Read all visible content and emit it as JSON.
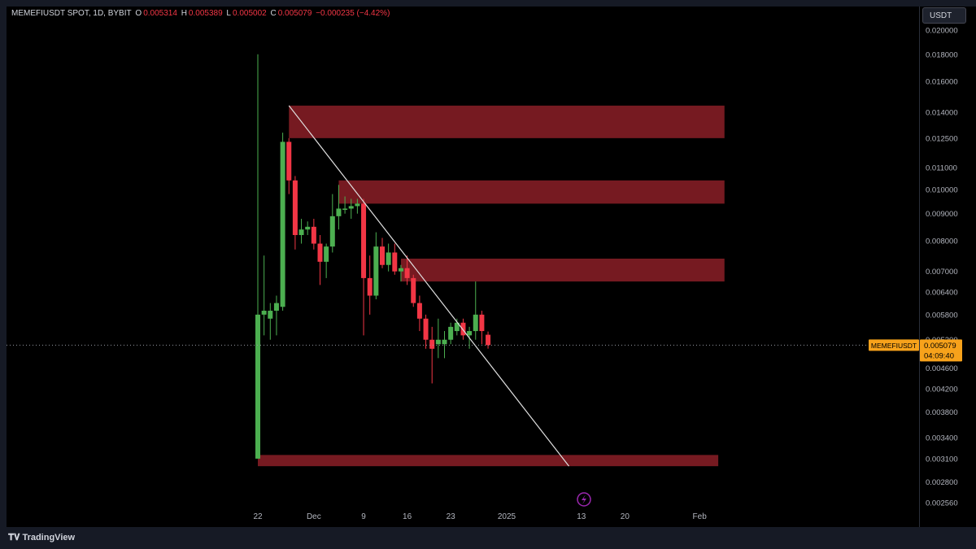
{
  "header": {
    "symbol": "MEMEFIUSDT SPOT, 1D, BYBIT",
    "o_label": "O",
    "o_value": "0.005314",
    "h_label": "H",
    "h_value": "0.005389",
    "l_label": "L",
    "l_value": "0.005002",
    "c_label": "C",
    "c_value": "0.005079",
    "change": "−0.000235 (−4.42%)"
  },
  "currency_button": "USDT",
  "footer": {
    "brand": "TradingView"
  },
  "last_price": {
    "symbol": "MEMEFIUSDT",
    "price": "0.005079",
    "countdown": "04:09:40"
  },
  "colors": {
    "up": "#4caf50",
    "down": "#f23645",
    "zone": "#801c24",
    "trendline": "#e0e0e0",
    "price_tag": "#f7a21b",
    "background": "#000000"
  },
  "chart_data": {
    "type": "candlestick",
    "y_scale": "log",
    "ylim": [
      0.00245,
      0.0205
    ],
    "y_ticks": [
      "0.020000",
      "0.018000",
      "0.016000",
      "0.014000",
      "0.012500",
      "0.011000",
      "0.010000",
      "0.009000",
      "0.008000",
      "0.007000",
      "0.006400",
      "0.005800",
      "0.005200",
      "0.004600",
      "0.004200",
      "0.003800",
      "0.003400",
      "0.003100",
      "0.002800",
      "0.002560"
    ],
    "x_ticks": [
      "22",
      "Dec",
      "9",
      "16",
      "23",
      "2025",
      "13",
      "20",
      "Feb"
    ],
    "candles": [
      {
        "date": "2024-11-22",
        "o": 0.0031,
        "h": 0.018,
        "l": 0.0031,
        "c": 0.0058
      },
      {
        "date": "2024-11-23",
        "o": 0.0058,
        "h": 0.0075,
        "l": 0.0053,
        "c": 0.0059
      },
      {
        "date": "2024-11-24",
        "o": 0.0057,
        "h": 0.0061,
        "l": 0.0052,
        "c": 0.0059
      },
      {
        "date": "2024-11-25",
        "o": 0.0059,
        "h": 0.0063,
        "l": 0.0053,
        "c": 0.0061
      },
      {
        "date": "2024-11-26",
        "o": 0.006,
        "h": 0.0128,
        "l": 0.0059,
        "c": 0.0123
      },
      {
        "date": "2024-11-27",
        "o": 0.0123,
        "h": 0.0125,
        "l": 0.0098,
        "c": 0.0104
      },
      {
        "date": "2024-11-28",
        "o": 0.0104,
        "h": 0.0106,
        "l": 0.0077,
        "c": 0.0082
      },
      {
        "date": "2024-11-29",
        "o": 0.0082,
        "h": 0.0088,
        "l": 0.0079,
        "c": 0.0084
      },
      {
        "date": "2024-11-30",
        "o": 0.0084,
        "h": 0.0087,
        "l": 0.0082,
        "c": 0.0085
      },
      {
        "date": "2024-12-01",
        "o": 0.0085,
        "h": 0.0088,
        "l": 0.0077,
        "c": 0.0079
      },
      {
        "date": "2024-12-02",
        "o": 0.0079,
        "h": 0.0082,
        "l": 0.0066,
        "c": 0.0073
      },
      {
        "date": "2024-12-03",
        "o": 0.0073,
        "h": 0.0079,
        "l": 0.0068,
        "c": 0.0078
      },
      {
        "date": "2024-12-04",
        "o": 0.0078,
        "h": 0.0098,
        "l": 0.0076,
        "c": 0.0089
      },
      {
        "date": "2024-12-05",
        "o": 0.0089,
        "h": 0.0102,
        "l": 0.0084,
        "c": 0.0092
      },
      {
        "date": "2024-12-06",
        "o": 0.0092,
        "h": 0.0097,
        "l": 0.009,
        "c": 0.0092
      },
      {
        "date": "2024-12-07",
        "o": 0.0092,
        "h": 0.0096,
        "l": 0.0088,
        "c": 0.0093
      },
      {
        "date": "2024-12-08",
        "o": 0.0093,
        "h": 0.0096,
        "l": 0.009,
        "c": 0.0094
      },
      {
        "date": "2024-12-09",
        "o": 0.0094,
        "h": 0.0096,
        "l": 0.0053,
        "c": 0.0068
      },
      {
        "date": "2024-12-10",
        "o": 0.0068,
        "h": 0.0075,
        "l": 0.0058,
        "c": 0.0063
      },
      {
        "date": "2024-12-11",
        "o": 0.0063,
        "h": 0.0083,
        "l": 0.0062,
        "c": 0.0078
      },
      {
        "date": "2024-12-12",
        "o": 0.0078,
        "h": 0.0081,
        "l": 0.0071,
        "c": 0.0072
      },
      {
        "date": "2024-12-13",
        "o": 0.0072,
        "h": 0.0079,
        "l": 0.007,
        "c": 0.0076
      },
      {
        "date": "2024-12-14",
        "o": 0.0076,
        "h": 0.0079,
        "l": 0.0069,
        "c": 0.007
      },
      {
        "date": "2024-12-15",
        "o": 0.007,
        "h": 0.0072,
        "l": 0.0067,
        "c": 0.0071
      },
      {
        "date": "2024-12-16",
        "o": 0.0071,
        "h": 0.0075,
        "l": 0.0066,
        "c": 0.0068
      },
      {
        "date": "2024-12-17",
        "o": 0.0068,
        "h": 0.0069,
        "l": 0.006,
        "c": 0.0061
      },
      {
        "date": "2024-12-18",
        "o": 0.0061,
        "h": 0.0063,
        "l": 0.0054,
        "c": 0.0057
      },
      {
        "date": "2024-12-19",
        "o": 0.0057,
        "h": 0.0058,
        "l": 0.005,
        "c": 0.0052
      },
      {
        "date": "2024-12-20",
        "o": 0.0052,
        "h": 0.0055,
        "l": 0.0043,
        "c": 0.005
      },
      {
        "date": "2024-12-21",
        "o": 0.0051,
        "h": 0.0057,
        "l": 0.0048,
        "c": 0.0052
      },
      {
        "date": "2024-12-22",
        "o": 0.0051,
        "h": 0.0054,
        "l": 0.0048,
        "c": 0.0052
      },
      {
        "date": "2024-12-23",
        "o": 0.0052,
        "h": 0.0056,
        "l": 0.0051,
        "c": 0.0055
      },
      {
        "date": "2024-12-24",
        "o": 0.0054,
        "h": 0.0057,
        "l": 0.0053,
        "c": 0.0056
      },
      {
        "date": "2024-12-25",
        "o": 0.0056,
        "h": 0.0057,
        "l": 0.0052,
        "c": 0.0053
      },
      {
        "date": "2024-12-26",
        "o": 0.0053,
        "h": 0.0055,
        "l": 0.005,
        "c": 0.0054
      },
      {
        "date": "2024-12-27",
        "o": 0.0054,
        "h": 0.0067,
        "l": 0.0052,
        "c": 0.0058
      },
      {
        "date": "2024-12-28",
        "o": 0.0058,
        "h": 0.0059,
        "l": 0.0051,
        "c": 0.0054
      },
      {
        "date": "2024-12-29",
        "o": 0.005314,
        "h": 0.005389,
        "l": 0.005002,
        "c": 0.005079
      }
    ],
    "zones": [
      {
        "from": "2024-11-27",
        "to": "2025-02-05",
        "low": 0.0125,
        "high": 0.0144
      },
      {
        "from": "2024-12-05",
        "to": "2025-02-05",
        "low": 0.0094,
        "high": 0.0104
      },
      {
        "from": "2024-12-15",
        "to": "2025-02-05",
        "low": 0.0067,
        "high": 0.0074
      },
      {
        "from": "2024-11-22",
        "to": "2025-02-04",
        "low": 0.003,
        "high": 0.00315
      }
    ],
    "trendline": {
      "from_date": "2024-11-27",
      "from_price": 0.0144,
      "to_date": "2025-01-11",
      "to_price": 0.003
    },
    "last_price_line": 0.005079
  }
}
